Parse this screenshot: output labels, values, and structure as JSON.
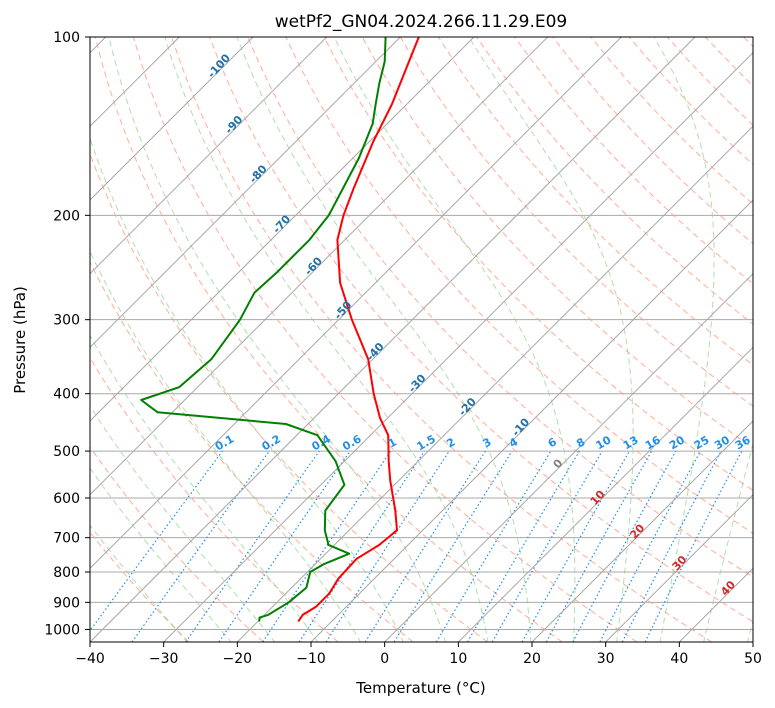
{
  "chart_data": {
    "type": "line",
    "chart_kind": "skew-T log-P diagram",
    "title": "wetPf2_GN04.2024.266.11.29.E09",
    "xlabel": "Temperature (°C)",
    "ylabel": "Pressure (hPa)",
    "xlim": [
      -40,
      50
    ],
    "ylim": [
      1050,
      100
    ],
    "y_scale": "log",
    "x_ticks": [
      -40,
      -30,
      -20,
      -10,
      0,
      10,
      20,
      30,
      40,
      50
    ],
    "y_ticks": [
      1000,
      900,
      800,
      700,
      600,
      500,
      400,
      300,
      200,
      100
    ],
    "x_tick_labels": [
      "−40",
      "−30",
      "−20",
      "−10",
      "0",
      "10",
      "20",
      "30",
      "40",
      "50"
    ],
    "y_tick_labels": [
      "1000",
      "900",
      "800",
      "700",
      "600",
      "500",
      "400",
      "300",
      "200",
      "100"
    ],
    "grid": true,
    "skewed_isotherms": true,
    "colors": {
      "temperature": "#ff0000",
      "dewpoint": "#008000",
      "isotherm": "#a8a8a8",
      "dry_adiabat": "#ff9f86",
      "moist_adiabat": "#8fd08f",
      "mixing_ratio": "#1f8fe8",
      "isotherm_label": "#1f6fa8",
      "temp_label": "#d62728",
      "zero_label": "#808080"
    },
    "series": [
      {
        "role": "temperature",
        "color": "#ff0000",
        "points": [
          {
            "p": 970,
            "t": -14.5
          },
          {
            "p": 945,
            "t": -14.8
          },
          {
            "p": 915,
            "t": -14.1
          },
          {
            "p": 870,
            "t": -14.1
          },
          {
            "p": 820,
            "t": -14.9
          },
          {
            "p": 760,
            "t": -15.1
          },
          {
            "p": 720,
            "t": -13.9
          },
          {
            "p": 680,
            "t": -13.5
          },
          {
            "p": 630,
            "t": -16.4
          },
          {
            "p": 560,
            "t": -21.2
          },
          {
            "p": 520,
            "t": -24.0
          },
          {
            "p": 470,
            "t": -27.6
          },
          {
            "p": 440,
            "t": -31.0
          },
          {
            "p": 400,
            "t": -35.2
          },
          {
            "p": 350,
            "t": -40.6
          },
          {
            "p": 300,
            "t": -48.2
          },
          {
            "p": 260,
            "t": -54.8
          },
          {
            "p": 220,
            "t": -61.0
          },
          {
            "p": 200,
            "t": -63.5
          },
          {
            "p": 180,
            "t": -65.8
          },
          {
            "p": 150,
            "t": -69.5
          },
          {
            "p": 130,
            "t": -72.0
          },
          {
            "p": 110,
            "t": -75.5
          },
          {
            "p": 100,
            "t": -77.5
          }
        ]
      },
      {
        "role": "dewpoint",
        "color": "#008000",
        "points": [
          {
            "p": 970,
            "t": -19.8
          },
          {
            "p": 955,
            "t": -20.3
          },
          {
            "p": 945,
            "t": -19.5
          },
          {
            "p": 900,
            "t": -18.4
          },
          {
            "p": 850,
            "t": -18.0
          },
          {
            "p": 800,
            "t": -19.6
          },
          {
            "p": 775,
            "t": -18.8
          },
          {
            "p": 745,
            "t": -16.8
          },
          {
            "p": 720,
            "t": -20.8
          },
          {
            "p": 680,
            "t": -23.3
          },
          {
            "p": 630,
            "t": -25.9
          },
          {
            "p": 570,
            "t": -26.8
          },
          {
            "p": 520,
            "t": -31.2
          },
          {
            "p": 470,
            "t": -37.2
          },
          {
            "p": 450,
            "t": -43.0
          },
          {
            "p": 430,
            "t": -62.0
          },
          {
            "p": 410,
            "t": -65.9
          },
          {
            "p": 390,
            "t": -62.5
          },
          {
            "p": 350,
            "t": -61.9
          },
          {
            "p": 300,
            "t": -63.4
          },
          {
            "p": 270,
            "t": -65.1
          },
          {
            "p": 250,
            "t": -64.8
          },
          {
            "p": 220,
            "t": -64.8
          },
          {
            "p": 200,
            "t": -65.5
          },
          {
            "p": 160,
            "t": -69.2
          },
          {
            "p": 140,
            "t": -72.0
          },
          {
            "p": 130,
            "t": -74.2
          },
          {
            "p": 120,
            "t": -76.5
          },
          {
            "p": 110,
            "t": -78.8
          },
          {
            "p": 100,
            "t": -82.0
          }
        ]
      }
    ],
    "isotherm_labels": [
      "-100",
      "-90",
      "-80",
      "-70",
      "-60",
      "-50",
      "-40",
      "-30",
      "-20",
      "-10"
    ],
    "temperature_labels": [
      "0",
      "10",
      "20",
      "30",
      "40"
    ],
    "mixing_ratio_labels": [
      "0.1",
      "0.2",
      "0.4",
      "0.6",
      "1",
      "1.5",
      "2",
      "3",
      "4",
      "6",
      "8",
      "10",
      "13",
      "16",
      "20",
      "25",
      "30",
      "36"
    ]
  }
}
